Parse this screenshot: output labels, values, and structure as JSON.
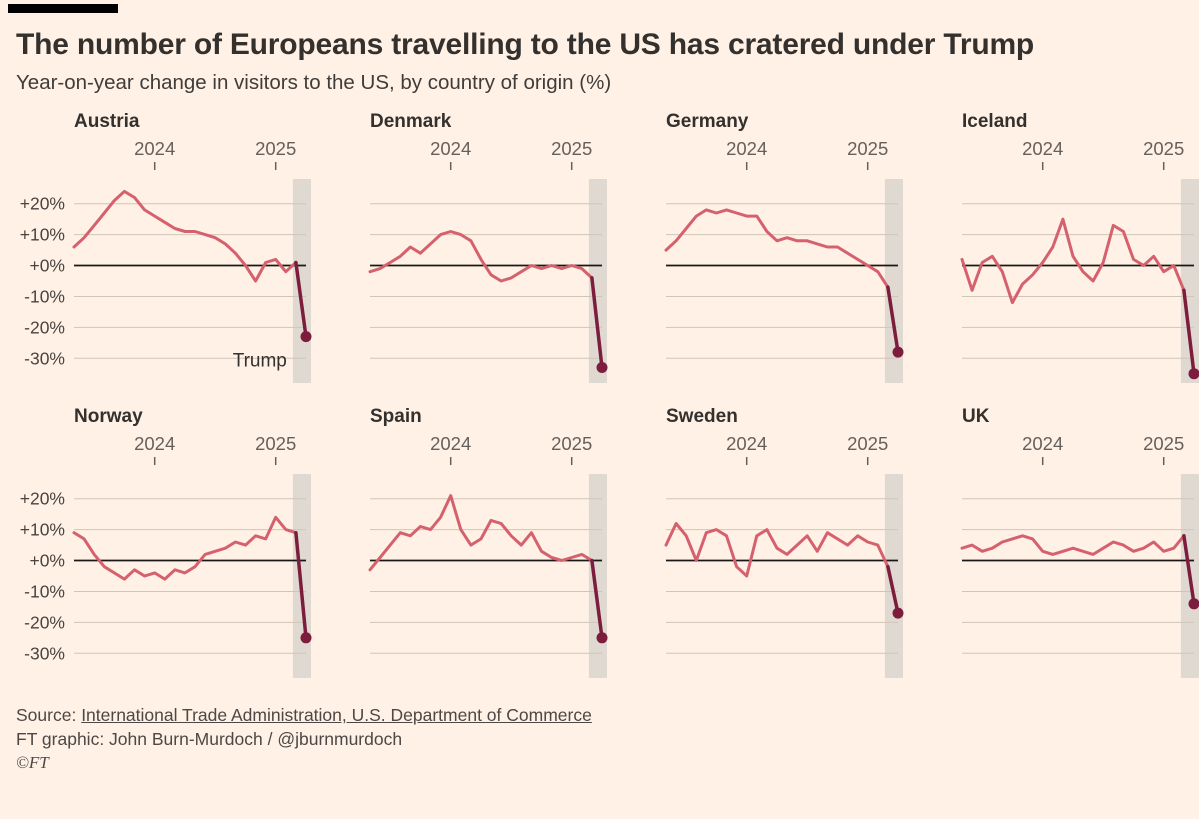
{
  "header": {
    "title": "The number of Europeans travelling to the US has cratered under Trump",
    "subtitle": "Year-on-year change in visitors to the US, by country of origin (%)"
  },
  "footer": {
    "source_prefix": "Source: ",
    "source_text": "International Trade Administration, U.S. Department of Commerce",
    "credit": "FT graphic: John Burn-Murdoch / @jburnmurdoch",
    "copyright": "©FT"
  },
  "colors": {
    "background": "#fff1e5",
    "line": "#d6616e",
    "drop": "#7c1d3e",
    "grid": "#d0c6b8",
    "zero_line": "#1a1817",
    "band": "#dfd9d1",
    "text": "#33302e",
    "axis_text": "#66605c",
    "ylabel_text": "#4a4440"
  },
  "chart_data": {
    "type": "line",
    "layout": "small multiples, 2 rows x 4 columns, shared axes, y labels on left column only",
    "ylim": [
      -38,
      28
    ],
    "yticks": [
      {
        "value": 20,
        "label": "+20%"
      },
      {
        "value": 10,
        "label": "+10%"
      },
      {
        "value": 0,
        "label": "+0%"
      },
      {
        "value": -10,
        "label": "-10%"
      },
      {
        "value": -20,
        "label": "-20%"
      },
      {
        "value": -30,
        "label": "-30%"
      }
    ],
    "x_ticks": [
      {
        "label": "2024",
        "index": 8
      },
      {
        "label": "2025",
        "index": 20
      }
    ],
    "highlight_last_points": 2,
    "annotation": {
      "panel_index": 0,
      "text": "Trump",
      "value": -30
    },
    "panels": [
      {
        "name": "Austria",
        "values": [
          6,
          9,
          13,
          17,
          21,
          24,
          22,
          18,
          16,
          14,
          12,
          11,
          11,
          10,
          9,
          7,
          4,
          0,
          -5,
          1,
          2,
          -2,
          1,
          -23
        ]
      },
      {
        "name": "Denmark",
        "values": [
          -2,
          -1,
          1,
          3,
          6,
          4,
          7,
          10,
          11,
          10,
          8,
          2,
          -3,
          -5,
          -4,
          -2,
          0,
          -1,
          0,
          -1,
          0,
          -1,
          -4,
          -33
        ]
      },
      {
        "name": "Germany",
        "values": [
          5,
          8,
          12,
          16,
          18,
          17,
          18,
          17,
          16,
          16,
          11,
          8,
          9,
          8,
          8,
          7,
          6,
          6,
          4,
          2,
          0,
          -2,
          -7,
          -28
        ]
      },
      {
        "name": "Iceland",
        "values": [
          2,
          -8,
          1,
          3,
          -2,
          -12,
          -6,
          -3,
          1,
          6,
          15,
          3,
          -2,
          -5,
          1,
          13,
          11,
          2,
          0,
          3,
          -2,
          0,
          -8,
          -35
        ]
      },
      {
        "name": "Norway",
        "values": [
          9,
          7,
          2,
          -2,
          -4,
          -6,
          -3,
          -5,
          -4,
          -6,
          -3,
          -4,
          -2,
          2,
          3,
          4,
          6,
          5,
          8,
          7,
          14,
          10,
          9,
          -25
        ]
      },
      {
        "name": "Spain",
        "values": [
          -3,
          1,
          5,
          9,
          8,
          11,
          10,
          14,
          21,
          10,
          5,
          7,
          13,
          12,
          8,
          5,
          9,
          3,
          1,
          0,
          1,
          2,
          0,
          -25
        ]
      },
      {
        "name": "Sweden",
        "values": [
          5,
          12,
          8,
          0,
          9,
          10,
          8,
          -2,
          -5,
          8,
          10,
          4,
          2,
          5,
          8,
          3,
          9,
          7,
          5,
          8,
          6,
          5,
          -2,
          -17
        ]
      },
      {
        "name": "UK",
        "values": [
          4,
          5,
          3,
          4,
          6,
          7,
          8,
          7,
          3,
          2,
          3,
          4,
          3,
          2,
          4,
          6,
          5,
          3,
          4,
          6,
          3,
          4,
          8,
          -14
        ]
      }
    ]
  }
}
